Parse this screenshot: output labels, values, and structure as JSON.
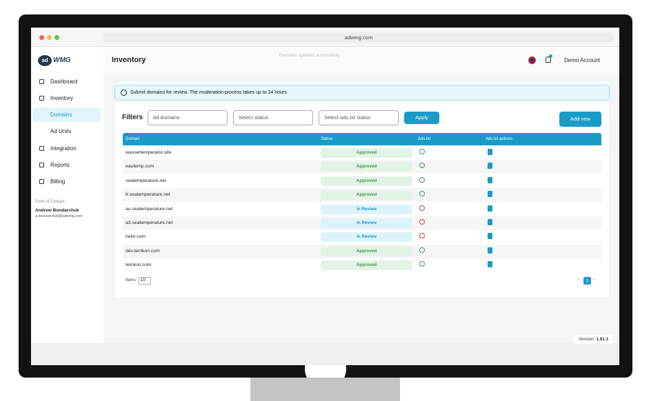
{
  "browser": {
    "url": "adwmg.com"
  },
  "toast": "Domains updated successfully",
  "header": {
    "title": "Inventory",
    "account": "Demo Account"
  },
  "sidebar": {
    "nav": [
      "Dashboard",
      "Inventory",
      "Domains",
      "Ad Units",
      "Integration",
      "Reports",
      "Billing"
    ],
    "contact": {
      "label": "Point of Contact",
      "name": "Andrew Bondarchuk",
      "email": "a.bondarchuk@adwmg.com"
    }
  },
  "banner": "Submit domains for review. The moderation process takes up to 24 hours",
  "filters": {
    "title": "Filters",
    "selects": [
      "All domains",
      "Select status",
      "Select ads.txt status"
    ],
    "apply": "Apply",
    "add": "Add new"
  },
  "table": {
    "columns": [
      "Domain",
      "Status",
      "Ads.txt",
      "Ads.txt actions"
    ],
    "rows": [
      [
        "wassertemperatur.site",
        "Approved"
      ],
      [
        "eautemp.com",
        "Approved"
      ],
      [
        "seatemperature.net",
        "Approved"
      ],
      [
        "fr.seatemperature.net",
        "Approved"
      ],
      [
        "au.seatemperature.net",
        "In Review"
      ],
      [
        "a3.seatemperature.net",
        "In Review"
      ],
      [
        "hello.com",
        "In Review"
      ],
      [
        "dev.terrikon.com",
        "Approved"
      ],
      [
        "terrikon.com",
        "Approved"
      ]
    ]
  },
  "pagination": {
    "items_label": "Items:",
    "items": "10",
    "page": "1"
  },
  "version": {
    "label": "Version:",
    "value": "1.81.1"
  }
}
